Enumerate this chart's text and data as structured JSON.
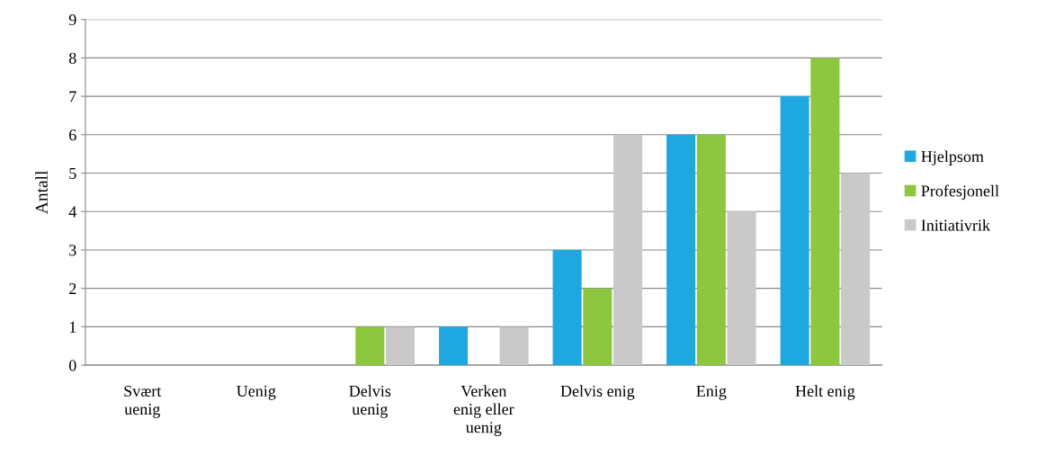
{
  "chart_data": {
    "type": "bar",
    "ylabel": "Antall",
    "categories": [
      "Svært\nuenig",
      "Uenig",
      "Delvis\nuenig",
      "Verken\nenig eller\nuenig",
      "Delvis enig",
      "Enig",
      "Helt enig"
    ],
    "series": [
      {
        "name": "Hjelpsom",
        "color": "#1ea8df",
        "values": [
          0,
          0,
          0,
          1,
          3,
          6,
          7
        ]
      },
      {
        "name": "Profesjonell",
        "color": "#8dc63f",
        "values": [
          0,
          0,
          1,
          0,
          2,
          6,
          8
        ]
      },
      {
        "name": "Initiativrik",
        "color": "#c9c9c9",
        "values": [
          0,
          0,
          1,
          1,
          6,
          4,
          5
        ]
      }
    ],
    "ylim": [
      0,
      9
    ],
    "yticks": [
      0,
      1,
      2,
      3,
      4,
      5,
      6,
      7,
      8,
      9
    ],
    "grid": "y",
    "legend": "right"
  }
}
